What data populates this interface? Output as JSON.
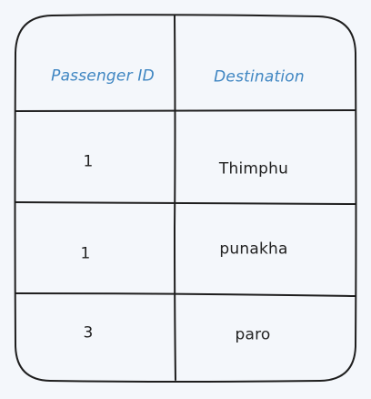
{
  "table": {
    "headers": [
      "Passenger ID",
      "Destination"
    ],
    "rows": [
      {
        "passenger_id": "1",
        "destination": "Thimphu"
      },
      {
        "passenger_id": "1",
        "destination": "punakha"
      },
      {
        "passenger_id": "3",
        "destination": "paro"
      }
    ]
  },
  "colors": {
    "background": "#f4f7fb",
    "header_text": "#3f86c2",
    "body_text": "#222222",
    "stroke": "#1e1e1e"
  }
}
